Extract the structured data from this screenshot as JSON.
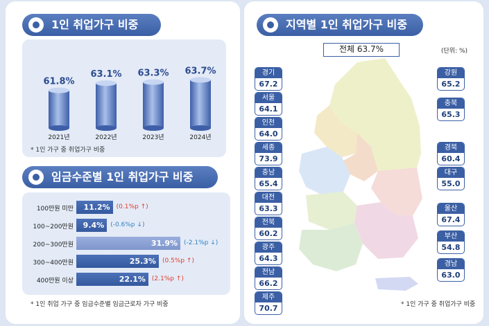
{
  "sections": {
    "yearly_title": "1인 취업가구 비중",
    "wage_title": "임금수준별 1인 취업가구 비중",
    "region_title": "지역별 1인 취업가구 비중"
  },
  "notes": {
    "yearly": "* 1인 가구 중 취업가구 비중",
    "wage": "* 1인 취업 가구 중 임금수준별 임금근로자 가구 비중",
    "region": "* 1인 가구 중 취업가구 비중",
    "unit": "(단위: %)"
  },
  "national": {
    "label": "전체 63.7%"
  },
  "chart_data": [
    {
      "type": "bar",
      "title": "1인 취업가구 비중",
      "categories": [
        "2021년",
        "2022년",
        "2023년",
        "2024년"
      ],
      "values": [
        61.8,
        63.1,
        63.3,
        63.7
      ],
      "value_labels": [
        "61.8%",
        "63.1%",
        "63.3%",
        "63.7%"
      ],
      "ylim": [
        55,
        66
      ]
    },
    {
      "type": "bar",
      "orientation": "horizontal",
      "title": "임금수준별 1인 취업가구 비중",
      "categories": [
        "100만원 미만",
        "100~200만원",
        "200~300만원",
        "300~400만원",
        "400만원 이상"
      ],
      "values": [
        11.2,
        9.4,
        31.9,
        25.3,
        22.1
      ],
      "value_labels": [
        "11.2%",
        "9.4%",
        "31.9%",
        "25.3%",
        "22.1%"
      ],
      "changes": [
        "(0.1%p",
        "(-0.6%p",
        "(-2.1%p",
        "(0.5%p",
        "(2.1%p"
      ],
      "change_dirs": [
        "up",
        "down",
        "down",
        "up",
        "up"
      ],
      "change_close": ")",
      "xlim": [
        0,
        31.9
      ]
    },
    {
      "type": "table",
      "title": "지역별 1인 취업가구 비중",
      "regions": [
        {
          "name": "경기",
          "value": "67.2"
        },
        {
          "name": "서울",
          "value": "64.1"
        },
        {
          "name": "인천",
          "value": "64.0"
        },
        {
          "name": "세종",
          "value": "73.9"
        },
        {
          "name": "충남",
          "value": "65.4"
        },
        {
          "name": "대전",
          "value": "63.3"
        },
        {
          "name": "전북",
          "value": "60.2"
        },
        {
          "name": "광주",
          "value": "64.3"
        },
        {
          "name": "전남",
          "value": "66.2"
        },
        {
          "name": "제주",
          "value": "70.7"
        },
        {
          "name": "강원",
          "value": "65.2"
        },
        {
          "name": "충북",
          "value": "65.3"
        },
        {
          "name": "경북",
          "value": "60.4"
        },
        {
          "name": "대구",
          "value": "55.0"
        },
        {
          "name": "울산",
          "value": "67.4"
        },
        {
          "name": "부산",
          "value": "54.8"
        },
        {
          "name": "경남",
          "value": "63.0"
        }
      ]
    }
  ],
  "colors": {
    "primary": "#3b5fa4",
    "bar_light": "#8ba0d4",
    "up": "#e03a2b",
    "down": "#2f7fc2",
    "panel": "#e4ebf7"
  }
}
